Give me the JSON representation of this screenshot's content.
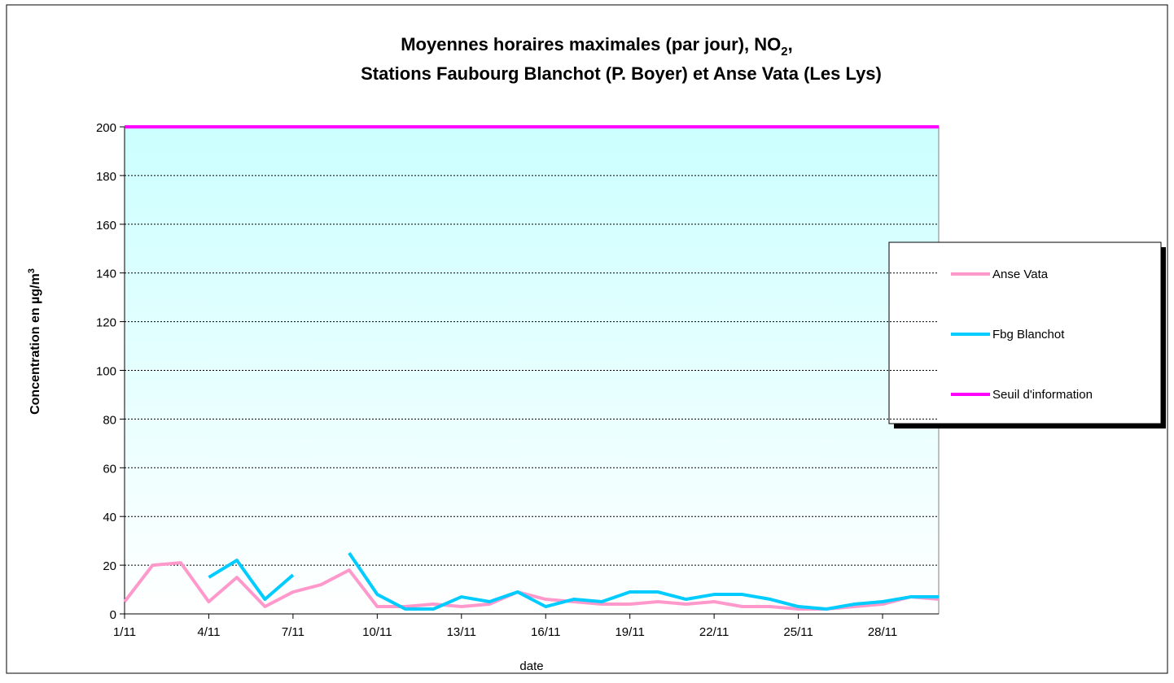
{
  "chart_data": {
    "type": "line",
    "title": {
      "line1": "Moyennes horaires maximales (par jour), NO",
      "line1_sub": "2",
      "line1_end": ",",
      "line2": "Stations Faubourg Blanchot (P. Boyer) et Anse Vata (Les Lys)"
    },
    "xlabel": "date",
    "ylabel": {
      "text": "Concentration en µg/m",
      "sup": "3"
    },
    "categories": [
      "1/11",
      null,
      null,
      "4/11",
      null,
      null,
      "7/11",
      null,
      null,
      "10/11",
      null,
      null,
      "13/11",
      null,
      null,
      "16/11",
      null,
      null,
      "19/11",
      null,
      null,
      "22/11",
      null,
      null,
      "25/11",
      null,
      null,
      "28/11",
      null,
      null
    ],
    "series": [
      {
        "name": "Anse Vata",
        "color": "#ff99cc",
        "values": [
          5,
          20,
          21,
          5,
          15,
          3,
          9,
          12,
          18,
          3,
          3,
          4,
          3,
          4,
          9,
          6,
          5,
          4,
          4,
          5,
          4,
          5,
          3,
          3,
          2,
          2,
          3,
          4,
          7,
          6
        ]
      },
      {
        "name": "Fbg Blanchot",
        "color": "#00ccff",
        "values": [
          null,
          null,
          null,
          15,
          22,
          6,
          16,
          null,
          25,
          8,
          2,
          2,
          7,
          5,
          9,
          3,
          6,
          5,
          9,
          9,
          6,
          8,
          8,
          6,
          3,
          2,
          4,
          5,
          7,
          7
        ]
      },
      {
        "name": "Seuil d'information",
        "color": "#ff00ff",
        "values": [
          200,
          200,
          200,
          200,
          200,
          200,
          200,
          200,
          200,
          200,
          200,
          200,
          200,
          200,
          200,
          200,
          200,
          200,
          200,
          200,
          200,
          200,
          200,
          200,
          200,
          200,
          200,
          200,
          200,
          200
        ]
      }
    ],
    "ylim": [
      0,
      200
    ],
    "yticks": [
      0,
      20,
      40,
      60,
      80,
      100,
      120,
      140,
      160,
      180,
      200
    ],
    "grid": true,
    "legend": "right"
  }
}
